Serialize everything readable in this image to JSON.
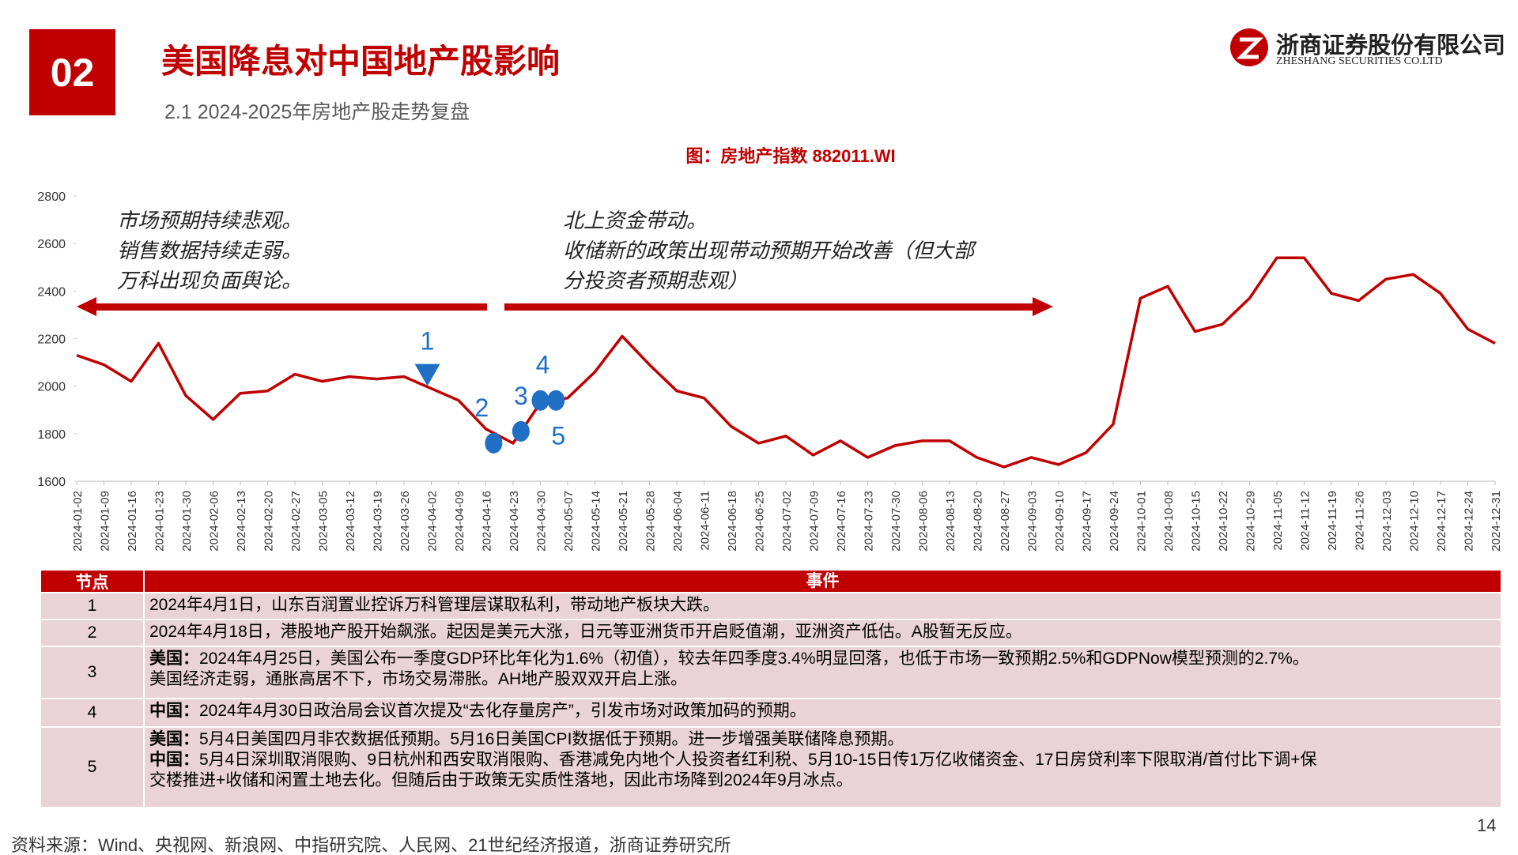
{
  "header": {
    "number": "02",
    "title": "美国降息对中国地产股影响",
    "subtitle": "2.1 2024-2025年房地产股走势复盘",
    "company": "浙商证券股份有限公司",
    "company_en": "ZHESHANG SECURITIES CO.LTD"
  },
  "chart_data": {
    "type": "line",
    "title": "图：房地产指数 882011.WI",
    "x": [
      "2024-01-02",
      "2024-01-09",
      "2024-01-16",
      "2024-01-23",
      "2024-01-30",
      "2024-02-06",
      "2024-02-13",
      "2024-02-20",
      "2024-02-27",
      "2024-03-05",
      "2024-03-12",
      "2024-03-19",
      "2024-03-26",
      "2024-04-02",
      "2024-04-09",
      "2024-04-16",
      "2024-04-23",
      "2024-04-30",
      "2024-05-07",
      "2024-05-14",
      "2024-05-21",
      "2024-05-28",
      "2024-06-04",
      "2024-06-11",
      "2024-06-18",
      "2024-06-25",
      "2024-07-02",
      "2024-07-09",
      "2024-07-16",
      "2024-07-23",
      "2024-07-30",
      "2024-08-06",
      "2024-08-13",
      "2024-08-20",
      "2024-08-27",
      "2024-09-03",
      "2024-09-10",
      "2024-09-17",
      "2024-09-24",
      "2024-10-01",
      "2024-10-08",
      "2024-10-15",
      "2024-10-22",
      "2024-10-29",
      "2024-11-05",
      "2024-11-12",
      "2024-11-19",
      "2024-11-26",
      "2024-12-03",
      "2024-12-10",
      "2024-12-17",
      "2024-12-24",
      "2024-12-31"
    ],
    "values": [
      2130,
      2090,
      2020,
      2180,
      1960,
      1860,
      1970,
      1980,
      2050,
      2020,
      2040,
      2030,
      2040,
      1990,
      1940,
      1820,
      1760,
      1930,
      1950,
      2060,
      2210,
      2090,
      1980,
      1950,
      1830,
      1760,
      1790,
      1710,
      1770,
      1700,
      1750,
      1770,
      1770,
      1700,
      1660,
      1700,
      1670,
      1720,
      1840,
      2370,
      2420,
      2230,
      2260,
      2370,
      2540,
      2540,
      2390,
      2360,
      2450,
      2470,
      2390,
      2240,
      2180
    ],
    "color": "#c00000",
    "ylim": [
      1600,
      2800
    ],
    "yticks": [
      1600,
      1800,
      2000,
      2200,
      2400,
      2600,
      2800
    ],
    "markers": [
      {
        "label": "1",
        "x": "2024-04-01",
        "y": 2040,
        "shape": "triangle"
      },
      {
        "label": "2",
        "x": "2024-04-18",
        "y": 1760,
        "shape": "circle"
      },
      {
        "label": "3",
        "x": "2024-04-25",
        "y": 1810,
        "shape": "circle"
      },
      {
        "label": "4",
        "x": "2024-04-30",
        "y": 1940,
        "shape": "circle"
      },
      {
        "label": "5",
        "x": "2024-05-04",
        "y": 1940,
        "shape": "circle"
      }
    ],
    "marker_color": "#1f6fc5",
    "annotations": [
      {
        "lines": [
          "市场预期持续悲观。",
          "销售数据持续走弱。",
          "万科出现负面舆论。"
        ]
      },
      {
        "lines": [
          "北上资金带动。",
          "收储新的政策出现带动预期开始改善（但大部",
          "分投资者预期悲观）"
        ]
      }
    ]
  },
  "table": {
    "headers": [
      "节点",
      "事件"
    ],
    "rows": [
      {
        "node": "1",
        "lines": [
          {
            "text": "2024年4月1日，山东百润置业控诉万科管理层谋取私利，带动地产板块大跌。"
          }
        ]
      },
      {
        "node": "2",
        "lines": [
          {
            "text": "2024年4月18日，港股地产股开始飙涨。起因是美元大涨，日元等亚洲货币开启贬值潮，亚洲资产低估。A股暂无反应。"
          }
        ]
      },
      {
        "node": "3",
        "lines": [
          {
            "label": "美国：",
            "text": "2024年4月25日，美国公布一季度GDP环比年化为1.6%（初值），较去年四季度3.4%明显回落，也低于市场一致预期2.5%和GDPNow模型预测的2.7%。"
          },
          {
            "text": "美国经济走弱，通胀高居不下，市场交易滞胀。AH地产股双双开启上涨。"
          }
        ]
      },
      {
        "node": "4",
        "lines": [
          {
            "label": "中国：",
            "text": "2024年4月30日政治局会议首次提及“去化存量房产”，引发市场对政策加码的预期。"
          }
        ]
      },
      {
        "node": "5",
        "lines": [
          {
            "label": "美国：",
            "text": "5月4日美国四月非农数据低预期。5月16日美国CPI数据低于预期。进一步增强美联储降息预期。"
          },
          {
            "label": "中国：",
            "text": "5月4日深圳取消限购、9日杭州和西安取消限购、香港减免内地个人投资者红利税、5月10-15日传1万亿收储资金、17日房贷利率下限取消/首付比下调+保"
          },
          {
            "text": "交楼推进+收储和闲置土地去化。但随后由于政策无实质性落地，因此市场降到2024年9月冰点。"
          }
        ]
      }
    ]
  },
  "footer": {
    "source": "资料来源：Wind、央视网、新浪网、中指研究院、人民网、21世纪经济报道，浙商证券研究所",
    "page": "14"
  }
}
